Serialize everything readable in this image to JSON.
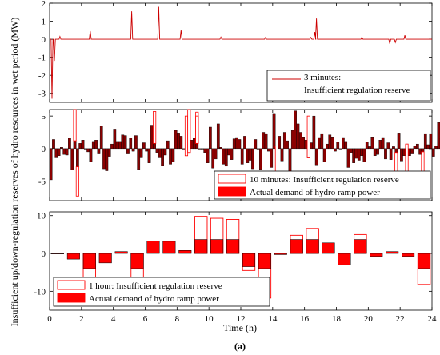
{
  "figure": {
    "ylabel": "Insufficient up/down-regulation reserves of hydro resources in wet period (MW)",
    "xlabel": "Time (h)",
    "caption": "(a)"
  },
  "colors": {
    "red": "#ff0000",
    "dark_red": "#8b0000",
    "line": "#cc0000",
    "white": "#ffffff"
  },
  "chart_data": [
    {
      "type": "line",
      "id": "panel1",
      "xlim": [
        0,
        24
      ],
      "ylim": [
        -3.5,
        2
      ],
      "yticks": [
        -3,
        -2,
        -1,
        0,
        1,
        2
      ],
      "series": [
        {
          "name": "3 minutes: Insufficient regulation reserve",
          "spikes": [
            [
              0.15,
              -3.3
            ],
            [
              0.3,
              -1.2
            ],
            [
              0.65,
              0.15
            ],
            [
              2.55,
              0.45
            ],
            [
              5.15,
              1.55
            ],
            [
              6.85,
              1.8
            ],
            [
              8.25,
              0.5
            ],
            [
              10.75,
              0.12
            ],
            [
              13.55,
              0.1
            ],
            [
              16.4,
              0.1
            ],
            [
              16.65,
              0.4
            ],
            [
              16.75,
              1.15
            ],
            [
              19.6,
              0.12
            ],
            [
              21.35,
              -0.25
            ],
            [
              21.7,
              -0.18
            ],
            [
              22.3,
              0.22
            ]
          ]
        }
      ],
      "legend": [
        "3 minutes:",
        "Insufficient regulation reserve"
      ]
    },
    {
      "type": "bar",
      "id": "panel2",
      "xlim": [
        0,
        24
      ],
      "ylim": [
        -8,
        6
      ],
      "yticks": [
        -5,
        0,
        5
      ],
      "bar_width_h": 0.1667,
      "series": [
        {
          "name": "10 minutes: Insufficient regulation reserve",
          "values": [
            -4.8,
            1.4,
            -1.3,
            -1.1,
            0.2,
            -0.9,
            -1.0,
            1.6,
            -3.3,
            1.2,
            -2.8,
            0.8,
            1.3,
            0.0,
            -0.5,
            -2.0,
            1.1,
            1.3,
            -0.7,
            3.5,
            -3.1,
            -3.4,
            -1.2,
            0.7,
            3.0,
            1.1,
            1.1,
            2.1,
            2.0,
            -0.7,
            1.6,
            -0.4,
            2.0,
            -3.2,
            -1.3,
            0.9,
            -0.4,
            -2.2,
            3.6,
            0.8,
            -0.6,
            -1.3,
            -2.6,
            -1.0,
            1.2,
            -2.4,
            -2.0,
            2.8,
            2.4,
            1.9,
            0.0,
            -1.1,
            -0.6,
            1.3,
            1.6,
            0.8,
            0.0,
            0.0,
            -0.6,
            -2.2,
            3.3,
            -3.0,
            -1.6,
            3.8,
            0.2,
            -2.4,
            -2.7,
            -1.0,
            -1.7,
            1.5,
            1.7,
            1.4,
            -2.4,
            1.9,
            -2.2,
            -1.8,
            -3.1,
            1.4,
            0.0,
            -3.2,
            2.5,
            2.3,
            -0.4,
            -2.9,
            5.4,
            0.4,
            1.9,
            -1.9,
            2.5,
            1.2,
            -3.6,
            2.8,
            5.8,
            3.8,
            2.5,
            1.8,
            1.3,
            -1.3,
            0.9,
            5.0,
            -2.5,
            1.7,
            2.3,
            -2.0,
            0.7,
            2.1,
            1.8,
            -0.4,
            1.0,
            0.0,
            1.7,
            1.1,
            -2.9,
            -0.6,
            -2.2,
            -1.5,
            -1.8,
            -1.1,
            -2.0,
            1.0,
            0.3,
            1.8,
            -1.1,
            -0.9,
            1.3,
            1.7,
            -1.6,
            0.9,
            -1.7,
            0.3,
            -0.6,
            2.4,
            -1.9,
            -1.1,
            0.7,
            -1.1,
            -0.7,
            0.4,
            0.7,
            -0.9,
            -0.5,
            2.3,
            0.6,
            2.3,
            -1.2,
            0.4,
            4.0,
            1.6,
            -1.4,
            -0.6
          ],
          "insufficient_top": [
            [
              1.55,
              6.0
            ],
            [
              1.65,
              -7.3
            ],
            [
              6.5,
              5.7
            ],
            [
              8.5,
              5.0
            ],
            [
              8.75,
              6.0
            ],
            [
              9.1,
              5.6
            ],
            [
              9.2,
              5.0
            ],
            [
              14.1,
              -6.0
            ],
            [
              16.1,
              5.0
            ],
            [
              21.7,
              -6.8
            ],
            [
              22.3,
              -6.0
            ],
            [
              23.4,
              -6.0
            ]
          ]
        }
      ],
      "legend": [
        "10 minutes: Insufficient regulation reserve",
        "Actual demand of hydro ramp power"
      ]
    },
    {
      "type": "bar",
      "id": "panel3",
      "xlim": [
        0,
        24
      ],
      "ylim": [
        -15,
        11
      ],
      "yticks": [
        -10,
        0,
        10
      ],
      "categories": [
        "1",
        "2",
        "3",
        "4",
        "5",
        "6",
        "7",
        "8",
        "9",
        "10",
        "11",
        "12",
        "13",
        "14",
        "15",
        "16",
        "17",
        "18",
        "19",
        "20",
        "21",
        "22",
        "23",
        "24"
      ],
      "series": [
        {
          "name": "Actual demand of hydro ramp power",
          "values": [
            0,
            -1.5,
            -4,
            -2.5,
            0.5,
            -4,
            3.3,
            3.2,
            0.8,
            3.7,
            3.7,
            3.7,
            -3.5,
            -4,
            -0.3,
            3.7,
            3.7,
            2.8,
            -3,
            3.7,
            -0.8,
            0.5,
            -0.8,
            -4
          ]
        },
        {
          "name": "1 hour: Insufficient regulation reserve",
          "values": [
            0,
            -1.5,
            -6.5,
            -2.5,
            0.5,
            -6.5,
            3.3,
            3.2,
            0.8,
            9.8,
            9.3,
            9.0,
            -4.5,
            -11.8,
            -0.3,
            4.8,
            6.6,
            2.8,
            -3,
            5.0,
            -0.8,
            0.5,
            -0.8,
            -8.2
          ]
        }
      ],
      "legend": [
        "1 hour: Insufficient regulation reserve",
        "Actual demand of hydro ramp power"
      ]
    }
  ],
  "xticks": [
    0,
    2,
    4,
    6,
    8,
    10,
    12,
    14,
    16,
    18,
    20,
    22,
    24
  ]
}
